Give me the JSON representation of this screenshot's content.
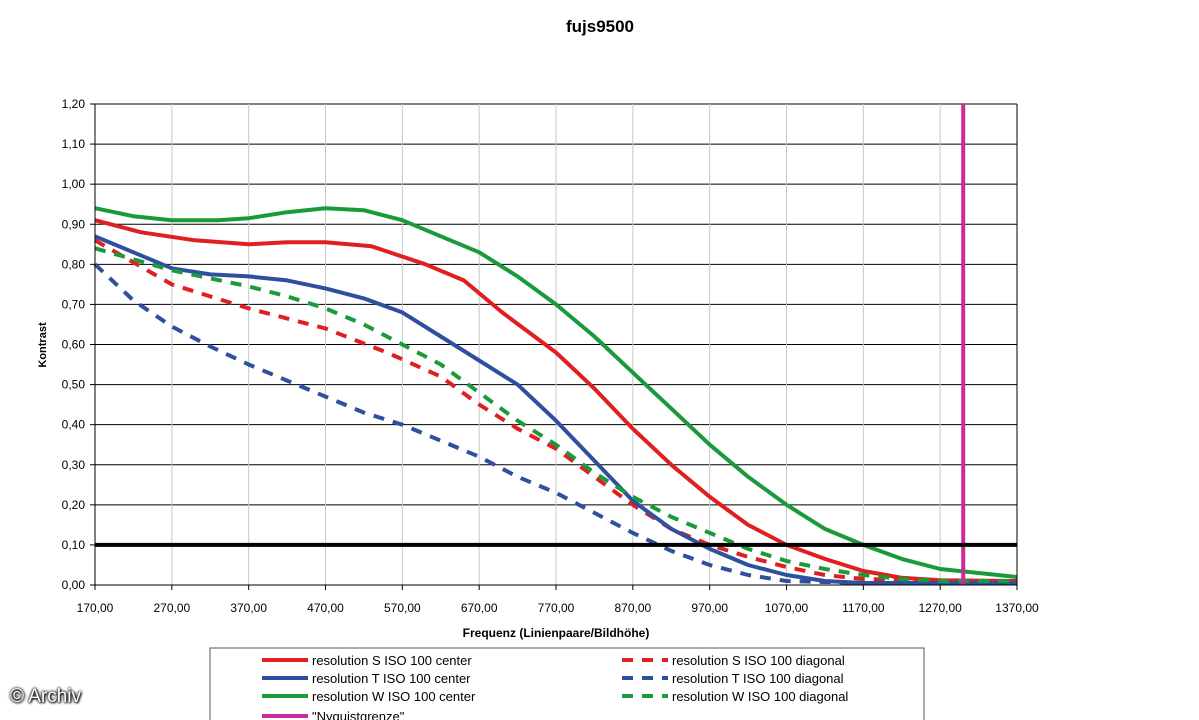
{
  "chart_data": {
    "type": "line",
    "title": "fujs9500",
    "xlabel": "Frequenz (Linienpaare/Bildhöhe)",
    "ylabel": "Kontrast",
    "xlim": [
      170,
      1370
    ],
    "ylim": [
      0,
      1.2
    ],
    "grid": true,
    "x_ticks": [
      "170,00",
      "270,00",
      "370,00",
      "470,00",
      "570,00",
      "670,00",
      "770,00",
      "870,00",
      "970,00",
      "1070,00",
      "1170,00",
      "1270,00",
      "1370,00"
    ],
    "y_ticks": [
      "0,00",
      "0,10",
      "0,20",
      "0,30",
      "0,40",
      "0,50",
      "0,60",
      "0,70",
      "0,80",
      "0,90",
      "1,00",
      "1,10",
      "1,20"
    ],
    "legend_position": "bottom",
    "series": [
      {
        "name": "resolution S ISO 100 center",
        "color": "#e02020",
        "dash": false,
        "points": [
          [
            170,
            0.91
          ],
          [
            230,
            0.88
          ],
          [
            300,
            0.86
          ],
          [
            370,
            0.85
          ],
          [
            420,
            0.855
          ],
          [
            470,
            0.855
          ],
          [
            530,
            0.845
          ],
          [
            600,
            0.8
          ],
          [
            650,
            0.76
          ],
          [
            700,
            0.68
          ],
          [
            770,
            0.58
          ],
          [
            820,
            0.49
          ],
          [
            870,
            0.39
          ],
          [
            920,
            0.3
          ],
          [
            970,
            0.22
          ],
          [
            1020,
            0.15
          ],
          [
            1070,
            0.1
          ],
          [
            1120,
            0.065
          ],
          [
            1170,
            0.035
          ],
          [
            1220,
            0.018
          ],
          [
            1270,
            0.012
          ],
          [
            1370,
            0.01
          ]
        ]
      },
      {
        "name": "resolution S ISO 100 diagonal",
        "color": "#e02020",
        "dash": true,
        "points": [
          [
            170,
            0.86
          ],
          [
            270,
            0.75
          ],
          [
            370,
            0.69
          ],
          [
            470,
            0.64
          ],
          [
            550,
            0.58
          ],
          [
            620,
            0.52
          ],
          [
            670,
            0.45
          ],
          [
            720,
            0.39
          ],
          [
            770,
            0.34
          ],
          [
            820,
            0.27
          ],
          [
            870,
            0.2
          ],
          [
            920,
            0.14
          ],
          [
            970,
            0.1
          ],
          [
            1020,
            0.07
          ],
          [
            1070,
            0.045
          ],
          [
            1120,
            0.025
          ],
          [
            1170,
            0.015
          ],
          [
            1270,
            0.01
          ],
          [
            1370,
            0.01
          ]
        ]
      },
      {
        "name": "resolution T ISO 100 center",
        "color": "#2f4f9f",
        "dash": false,
        "points": [
          [
            170,
            0.87
          ],
          [
            220,
            0.83
          ],
          [
            270,
            0.79
          ],
          [
            320,
            0.775
          ],
          [
            370,
            0.77
          ],
          [
            420,
            0.76
          ],
          [
            470,
            0.74
          ],
          [
            520,
            0.715
          ],
          [
            570,
            0.68
          ],
          [
            620,
            0.62
          ],
          [
            670,
            0.56
          ],
          [
            720,
            0.5
          ],
          [
            770,
            0.41
          ],
          [
            820,
            0.31
          ],
          [
            870,
            0.21
          ],
          [
            920,
            0.14
          ],
          [
            970,
            0.09
          ],
          [
            1020,
            0.05
          ],
          [
            1070,
            0.025
          ],
          [
            1120,
            0.01
          ],
          [
            1170,
            0.005
          ],
          [
            1370,
            0.005
          ]
        ]
      },
      {
        "name": "resolution T ISO 100 diagonal",
        "color": "#2f4f9f",
        "dash": true,
        "points": [
          [
            170,
            0.8
          ],
          [
            220,
            0.71
          ],
          [
            270,
            0.645
          ],
          [
            320,
            0.595
          ],
          [
            370,
            0.55
          ],
          [
            420,
            0.51
          ],
          [
            470,
            0.47
          ],
          [
            520,
            0.43
          ],
          [
            570,
            0.4
          ],
          [
            620,
            0.36
          ],
          [
            670,
            0.32
          ],
          [
            720,
            0.27
          ],
          [
            770,
            0.23
          ],
          [
            820,
            0.18
          ],
          [
            870,
            0.13
          ],
          [
            920,
            0.085
          ],
          [
            970,
            0.05
          ],
          [
            1020,
            0.025
          ],
          [
            1070,
            0.01
          ],
          [
            1170,
            0.005
          ],
          [
            1370,
            0.005
          ]
        ]
      },
      {
        "name": "resolution W ISO 100 center",
        "color": "#1a9a3a",
        "dash": false,
        "points": [
          [
            170,
            0.94
          ],
          [
            220,
            0.92
          ],
          [
            270,
            0.91
          ],
          [
            330,
            0.91
          ],
          [
            370,
            0.915
          ],
          [
            420,
            0.93
          ],
          [
            470,
            0.94
          ],
          [
            520,
            0.935
          ],
          [
            570,
            0.91
          ],
          [
            620,
            0.87
          ],
          [
            670,
            0.83
          ],
          [
            720,
            0.77
          ],
          [
            770,
            0.7
          ],
          [
            820,
            0.62
          ],
          [
            870,
            0.53
          ],
          [
            920,
            0.44
          ],
          [
            970,
            0.35
          ],
          [
            1020,
            0.27
          ],
          [
            1070,
            0.2
          ],
          [
            1120,
            0.14
          ],
          [
            1170,
            0.1
          ],
          [
            1220,
            0.065
          ],
          [
            1270,
            0.04
          ],
          [
            1320,
            0.03
          ],
          [
            1370,
            0.02
          ]
        ]
      },
      {
        "name": "resolution W ISO 100 diagonal",
        "color": "#1a9a3a",
        "dash": true,
        "points": [
          [
            170,
            0.84
          ],
          [
            270,
            0.785
          ],
          [
            370,
            0.745
          ],
          [
            420,
            0.72
          ],
          [
            470,
            0.69
          ],
          [
            520,
            0.65
          ],
          [
            570,
            0.6
          ],
          [
            620,
            0.55
          ],
          [
            670,
            0.48
          ],
          [
            720,
            0.41
          ],
          [
            770,
            0.35
          ],
          [
            820,
            0.28
          ],
          [
            870,
            0.22
          ],
          [
            920,
            0.17
          ],
          [
            970,
            0.13
          ],
          [
            1020,
            0.09
          ],
          [
            1070,
            0.06
          ],
          [
            1120,
            0.04
          ],
          [
            1170,
            0.025
          ],
          [
            1220,
            0.015
          ],
          [
            1270,
            0.01
          ],
          [
            1370,
            0.01
          ]
        ]
      },
      {
        "name": "\"Nyquistgrenze\"",
        "color": "#cc2a9a",
        "dash": false,
        "type": "vline",
        "x": 1300
      },
      {
        "name": "threshold 0,10",
        "color": "#000000",
        "dash": false,
        "type": "hline",
        "y": 0.1,
        "in_legend": false
      }
    ]
  },
  "watermark": "© Archiv"
}
